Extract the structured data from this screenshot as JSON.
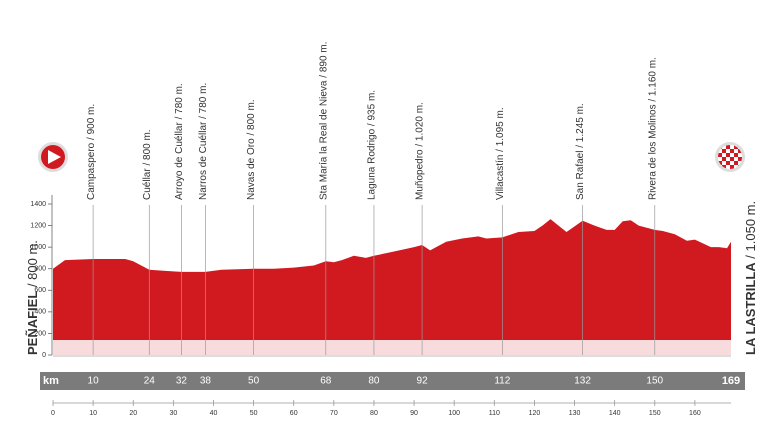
{
  "chart_data": {
    "type": "area",
    "color": "#d11a20",
    "x": [
      0,
      3,
      10,
      18,
      20,
      24,
      28,
      32,
      38,
      42,
      50,
      55,
      60,
      65,
      68,
      70,
      72,
      75,
      78,
      80,
      85,
      90,
      92,
      94,
      98,
      102,
      106,
      108,
      112,
      116,
      120,
      122,
      124,
      126,
      128,
      132,
      135,
      138,
      140,
      142,
      144,
      146,
      150,
      152,
      155,
      158,
      160,
      164,
      166,
      168,
      169
    ],
    "values": [
      800,
      880,
      890,
      890,
      870,
      790,
      780,
      770,
      770,
      790,
      800,
      800,
      810,
      830,
      870,
      860,
      880,
      920,
      900,
      920,
      960,
      1000,
      1020,
      970,
      1050,
      1080,
      1100,
      1080,
      1090,
      1140,
      1150,
      1200,
      1260,
      1200,
      1140,
      1245,
      1200,
      1160,
      1160,
      1240,
      1250,
      1200,
      1160,
      1150,
      1120,
      1060,
      1070,
      1000,
      1000,
      990,
      1050
    ],
    "xlim": [
      0,
      169
    ],
    "xticks": [
      0,
      10,
      20,
      30,
      40,
      50,
      60,
      70,
      80,
      90,
      100,
      110,
      120,
      130,
      140,
      150,
      160
    ],
    "ylim": [
      0,
      1400
    ],
    "yticks": [
      0,
      200,
      400,
      600,
      800,
      1000,
      1200,
      1400
    ],
    "km_label": "km",
    "start": {
      "name": "PEÑAFIEL",
      "elevation": "/ 800 m."
    },
    "finish": {
      "km": 169,
      "name": "LA LASTRILLA",
      "elevation": "/ 1.050 m."
    },
    "waypoints": [
      {
        "km": 10,
        "label": "Campaspero / 900 m."
      },
      {
        "km": 24,
        "label": "Cuéllar / 800 m."
      },
      {
        "km": 32,
        "label": "Arroyo de Cuéllar / 780 m."
      },
      {
        "km": 38,
        "label": "Narros de Cuéllar / 780 m."
      },
      {
        "km": 50,
        "label": "Navas de Oro / 800 m."
      },
      {
        "km": 68,
        "label": "Sta María la Real de Nieva / 890 m."
      },
      {
        "km": 80,
        "label": "Laguna Rodrigo / 935 m."
      },
      {
        "km": 92,
        "label": "Muñopedro / 1.020 m."
      },
      {
        "km": 112,
        "label": "Villacastín / 1.095 m."
      },
      {
        "km": 132,
        "label": "San Rafael / 1.245 m."
      },
      {
        "km": 150,
        "label": "Rivera de los Molinos / 1.160 m."
      }
    ]
  }
}
